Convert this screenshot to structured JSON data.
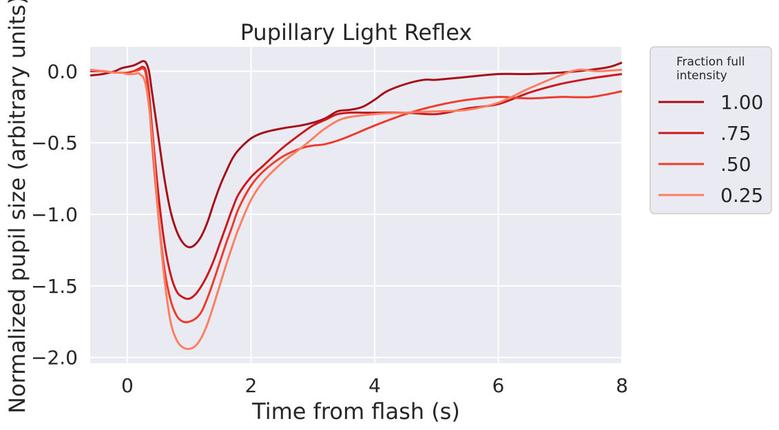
{
  "chart_data": {
    "type": "line",
    "title": "Pupillary Light Reflex",
    "xlabel": "Time from flash (s)",
    "ylabel": "Normalized pupil size (arbitrary units)",
    "xlim": [
      -0.6,
      8
    ],
    "ylim": [
      -2.04,
      0.17
    ],
    "x_ticks": [
      0,
      2,
      4,
      6,
      8
    ],
    "x_tick_labels": [
      "0",
      "2",
      "4",
      "6",
      "8"
    ],
    "y_ticks": [
      0.0,
      -0.5,
      -1.0,
      -1.5,
      -2.0
    ],
    "y_tick_labels": [
      "0.0",
      "−0.5",
      "−1.0",
      "−1.5",
      "−2.0"
    ],
    "grid": true,
    "legend": {
      "title": [
        "Fraction full",
        "intensity"
      ],
      "placement": "outside-right"
    },
    "series": [
      {
        "name": "1.00",
        "color": "#a50f15",
        "x": [
          -0.6,
          -0.4,
          -0.2,
          -0.1,
          0.0,
          0.1,
          0.2,
          0.25,
          0.3,
          0.35,
          0.4,
          0.5,
          0.6,
          0.7,
          0.8,
          0.9,
          1.0,
          1.1,
          1.2,
          1.3,
          1.4,
          1.5,
          1.6,
          1.7,
          1.8,
          2.0,
          2.2,
          2.5,
          2.8,
          3.0,
          3.2,
          3.4,
          3.6,
          3.8,
          4.0,
          4.2,
          4.5,
          4.8,
          5.0,
          5.5,
          6.0,
          6.5,
          7.0,
          7.5,
          7.8,
          8.0
        ],
        "values": [
          -0.03,
          -0.02,
          0.0,
          0.02,
          0.03,
          0.04,
          0.06,
          0.07,
          0.06,
          0.0,
          -0.15,
          -0.45,
          -0.75,
          -0.98,
          -1.12,
          -1.2,
          -1.23,
          -1.21,
          -1.15,
          -1.05,
          -0.92,
          -0.8,
          -0.7,
          -0.61,
          -0.55,
          -0.47,
          -0.43,
          -0.4,
          -0.38,
          -0.36,
          -0.33,
          -0.28,
          -0.27,
          -0.25,
          -0.2,
          -0.14,
          -0.09,
          -0.06,
          -0.06,
          -0.04,
          -0.02,
          -0.02,
          -0.01,
          0.01,
          0.03,
          0.06
        ]
      },
      {
        "name": ".75",
        "color": "#cb181d",
        "x": [
          -0.6,
          -0.4,
          -0.2,
          -0.1,
          0.0,
          0.1,
          0.2,
          0.25,
          0.3,
          0.35,
          0.4,
          0.5,
          0.6,
          0.7,
          0.8,
          0.9,
          1.0,
          1.1,
          1.2,
          1.3,
          1.4,
          1.5,
          1.6,
          1.7,
          1.8,
          2.0,
          2.2,
          2.5,
          2.8,
          3.0,
          3.2,
          3.4,
          3.6,
          3.8,
          4.0,
          4.5,
          5.0,
          5.5,
          6.0,
          6.5,
          7.0,
          7.5,
          8.0
        ],
        "values": [
          0.0,
          0.0,
          -0.01,
          -0.01,
          -0.01,
          0.0,
          0.02,
          0.03,
          0.0,
          -0.15,
          -0.4,
          -0.85,
          -1.2,
          -1.42,
          -1.54,
          -1.58,
          -1.59,
          -1.56,
          -1.5,
          -1.42,
          -1.32,
          -1.2,
          -1.08,
          -0.96,
          -0.86,
          -0.74,
          -0.66,
          -0.54,
          -0.44,
          -0.38,
          -0.34,
          -0.3,
          -0.29,
          -0.29,
          -0.29,
          -0.29,
          -0.3,
          -0.26,
          -0.23,
          -0.15,
          -0.09,
          -0.05,
          -0.02
        ]
      },
      {
        "name": ".50",
        "color": "#ef3b2c",
        "x": [
          -0.6,
          -0.4,
          -0.2,
          -0.1,
          0.0,
          0.1,
          0.2,
          0.25,
          0.3,
          0.35,
          0.4,
          0.5,
          0.6,
          0.7,
          0.8,
          0.9,
          1.0,
          1.1,
          1.2,
          1.3,
          1.4,
          1.5,
          1.6,
          1.7,
          1.8,
          2.0,
          2.2,
          2.5,
          2.8,
          3.0,
          3.2,
          3.5,
          4.0,
          4.5,
          5.0,
          5.5,
          6.0,
          6.5,
          7.0,
          7.5,
          8.0
        ],
        "values": [
          0.01,
          0.0,
          -0.01,
          -0.01,
          -0.01,
          0.0,
          0.01,
          0.02,
          -0.02,
          -0.2,
          -0.5,
          -1.0,
          -1.38,
          -1.6,
          -1.71,
          -1.75,
          -1.75,
          -1.73,
          -1.68,
          -1.58,
          -1.46,
          -1.33,
          -1.2,
          -1.08,
          -0.96,
          -0.8,
          -0.7,
          -0.6,
          -0.54,
          -0.52,
          -0.51,
          -0.47,
          -0.38,
          -0.3,
          -0.24,
          -0.2,
          -0.18,
          -0.19,
          -0.18,
          -0.18,
          -0.14
        ]
      },
      {
        "name": "0.25",
        "color": "#fc8060",
        "x": [
          -0.6,
          -0.4,
          -0.2,
          -0.1,
          0.0,
          0.1,
          0.2,
          0.3,
          0.4,
          0.5,
          0.6,
          0.7,
          0.8,
          0.9,
          1.0,
          1.1,
          1.2,
          1.3,
          1.4,
          1.5,
          1.6,
          1.7,
          1.8,
          2.0,
          2.2,
          2.5,
          2.8,
          3.0,
          3.2,
          3.5,
          4.0,
          4.5,
          5.0,
          5.5,
          6.0,
          6.5,
          7.0,
          7.3,
          7.6,
          8.0
        ],
        "values": [
          0.01,
          0.0,
          -0.01,
          -0.01,
          -0.02,
          -0.02,
          -0.02,
          -0.1,
          -0.45,
          -1.0,
          -1.45,
          -1.75,
          -1.88,
          -1.93,
          -1.94,
          -1.92,
          -1.86,
          -1.76,
          -1.63,
          -1.49,
          -1.35,
          -1.22,
          -1.1,
          -0.9,
          -0.77,
          -0.64,
          -0.54,
          -0.47,
          -0.4,
          -0.33,
          -0.3,
          -0.29,
          -0.28,
          -0.27,
          -0.22,
          -0.12,
          -0.03,
          0.01,
          0.0,
          0.01
        ]
      }
    ]
  }
}
